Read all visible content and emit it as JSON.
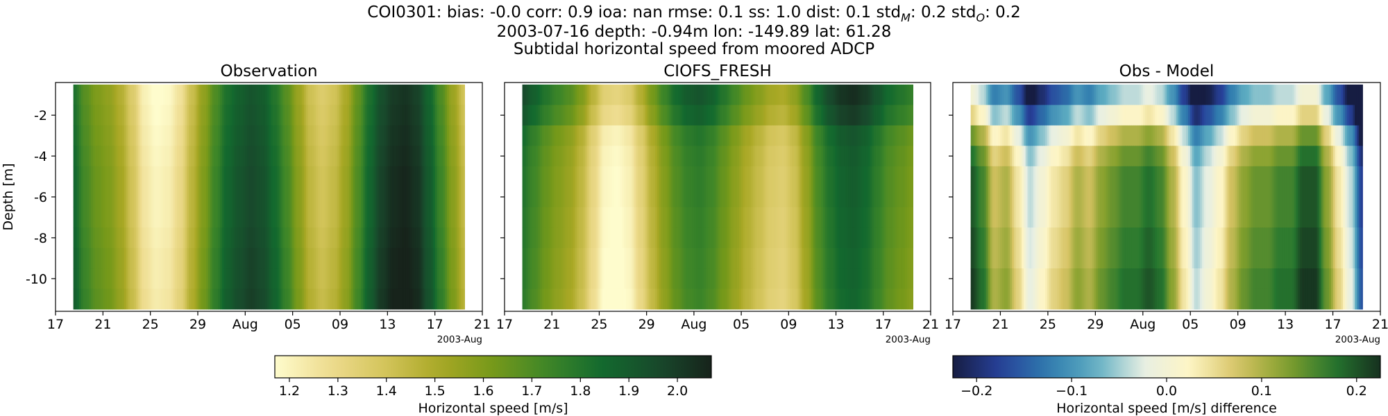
{
  "title": {
    "line1": {
      "prefix": "COI0301: bias: -0.0  corr: 0.9  ioa: nan  rmse: 0.1  ss: 1.0  dist: 0.1  std",
      "sub_m": "M",
      "mid": ": 0.2  std",
      "sub_o": "O",
      "suffix": ": 0.2"
    },
    "line2": "2003-07-16 depth: -0.94m lon: -149.89 lat: 61.28",
    "line3": "Subtidal horizontal speed from moored ADCP"
  },
  "chart_data": [
    {
      "type": "heatmap",
      "title": "Observation",
      "ylabel": "Depth [m]",
      "x_tick_labels": [
        "17",
        "21",
        "25",
        "29",
        "Aug",
        "05",
        "09",
        "13",
        "17",
        "21"
      ],
      "x_offset_label": "2003-Aug",
      "x_range": [
        "2003-07-16",
        "2003-08-21"
      ],
      "x_data_range": [
        "2003-07-17T12:00",
        "2003-08-19T12:00"
      ],
      "y_tick_labels": [
        "-2",
        "-4",
        "-6",
        "-8",
        "-10"
      ],
      "ylim": [
        -11.6,
        -0.4
      ],
      "colormap": "speed",
      "clim": [
        1.17,
        2.07
      ],
      "time_profile": [
        [
          "2003-07-17T12:00",
          1.86
        ],
        [
          "2003-07-18T12:00",
          1.72
        ],
        [
          "2003-07-19T12:00",
          1.64
        ],
        [
          "2003-07-20T12:00",
          1.6
        ],
        [
          "2003-07-21T12:00",
          1.52
        ],
        [
          "2003-07-22T12:00",
          1.4
        ],
        [
          "2003-07-23T12:00",
          1.25
        ],
        [
          "2003-07-24T12:00",
          1.2
        ],
        [
          "2003-07-25T12:00",
          1.22
        ],
        [
          "2003-07-26T12:00",
          1.3
        ],
        [
          "2003-07-27T12:00",
          1.46
        ],
        [
          "2003-07-28T12:00",
          1.6
        ],
        [
          "2003-07-29T12:00",
          1.74
        ],
        [
          "2003-07-30T12:00",
          1.86
        ],
        [
          "2003-07-31T12:00",
          1.92
        ],
        [
          "2003-08-01T12:00",
          1.96
        ],
        [
          "2003-08-02T12:00",
          1.93
        ],
        [
          "2003-08-03T12:00",
          1.84
        ],
        [
          "2003-08-04T12:00",
          1.72
        ],
        [
          "2003-08-05T12:00",
          1.58
        ],
        [
          "2003-08-06T12:00",
          1.45
        ],
        [
          "2003-08-07T12:00",
          1.4
        ],
        [
          "2003-08-08T12:00",
          1.44
        ],
        [
          "2003-08-09T12:00",
          1.54
        ],
        [
          "2003-08-10T12:00",
          1.7
        ],
        [
          "2003-08-11T12:00",
          1.86
        ],
        [
          "2003-08-12T12:00",
          1.98
        ],
        [
          "2003-08-13T12:00",
          2.04
        ],
        [
          "2003-08-14T12:00",
          2.06
        ],
        [
          "2003-08-15T12:00",
          2.02
        ],
        [
          "2003-08-16T12:00",
          1.9
        ],
        [
          "2003-08-17T12:00",
          1.74
        ],
        [
          "2003-08-18T12:00",
          1.58
        ],
        [
          "2003-08-19T12:00",
          1.44
        ]
      ],
      "depth_levels": [
        -1.0,
        -2.0,
        -3.0,
        -4.0,
        -5.0,
        -6.0,
        -7.0,
        -8.0,
        -9.0,
        -10.0,
        -11.0
      ],
      "depth_adjust": [
        -0.04,
        -0.03,
        -0.02,
        -0.01,
        0.0,
        0.0,
        0.0,
        0.01,
        0.02,
        0.02,
        0.03
      ]
    },
    {
      "type": "heatmap",
      "title": "CIOFS_FRESH",
      "x_tick_labels": [
        "17",
        "21",
        "25",
        "29",
        "Aug",
        "05",
        "09",
        "13",
        "17",
        "21"
      ],
      "x_offset_label": "2003-Aug",
      "x_range": [
        "2003-07-16",
        "2003-08-21"
      ],
      "x_data_range": [
        "2003-07-17T12:00",
        "2003-08-19T12:00"
      ],
      "ylim": [
        -11.6,
        -0.4
      ],
      "colormap": "speed",
      "clim": [
        1.17,
        2.07
      ],
      "time_profile": [
        [
          "2003-07-17T12:00",
          1.82
        ],
        [
          "2003-07-18T12:00",
          1.74
        ],
        [
          "2003-07-19T12:00",
          1.66
        ],
        [
          "2003-07-20T12:00",
          1.6
        ],
        [
          "2003-07-21T12:00",
          1.55
        ],
        [
          "2003-07-22T12:00",
          1.46
        ],
        [
          "2003-07-23T12:00",
          1.32
        ],
        [
          "2003-07-24T12:00",
          1.2
        ],
        [
          "2003-07-25T12:00",
          1.18
        ],
        [
          "2003-07-26T12:00",
          1.22
        ],
        [
          "2003-07-27T12:00",
          1.34
        ],
        [
          "2003-07-28T12:00",
          1.48
        ],
        [
          "2003-07-29T12:00",
          1.6
        ],
        [
          "2003-07-30T12:00",
          1.7
        ],
        [
          "2003-07-31T12:00",
          1.76
        ],
        [
          "2003-08-01T12:00",
          1.78
        ],
        [
          "2003-08-02T12:00",
          1.74
        ],
        [
          "2003-08-03T12:00",
          1.66
        ],
        [
          "2003-08-04T12:00",
          1.58
        ],
        [
          "2003-08-05T12:00",
          1.5
        ],
        [
          "2003-08-06T12:00",
          1.44
        ],
        [
          "2003-08-07T12:00",
          1.38
        ],
        [
          "2003-08-08T12:00",
          1.36
        ],
        [
          "2003-08-09T12:00",
          1.42
        ],
        [
          "2003-08-10T12:00",
          1.56
        ],
        [
          "2003-08-11T12:00",
          1.72
        ],
        [
          "2003-08-12T12:00",
          1.82
        ],
        [
          "2003-08-13T12:00",
          1.88
        ],
        [
          "2003-08-14T12:00",
          1.9
        ],
        [
          "2003-08-15T12:00",
          1.86
        ],
        [
          "2003-08-16T12:00",
          1.78
        ],
        [
          "2003-08-17T12:00",
          1.7
        ],
        [
          "2003-08-18T12:00",
          1.66
        ],
        [
          "2003-08-19T12:00",
          1.62
        ]
      ],
      "depth_levels": [
        -1.0,
        -2.0,
        -3.0,
        -4.0,
        -5.0,
        -6.0,
        -7.0,
        -8.0,
        -9.0,
        -10.0,
        -11.0
      ],
      "depth_adjust": [
        0.14,
        0.1,
        0.02,
        0.0,
        -0.01,
        -0.01,
        -0.02,
        -0.02,
        -0.03,
        -0.03,
        -0.04
      ]
    },
    {
      "type": "heatmap",
      "title": "Obs - Model",
      "x_tick_labels": [
        "17",
        "21",
        "25",
        "29",
        "Aug",
        "05",
        "09",
        "13",
        "17",
        "21"
      ],
      "x_offset_label": "2003-Aug",
      "x_range": [
        "2003-07-16",
        "2003-08-21"
      ],
      "x_data_range": [
        "2003-07-17T12:00",
        "2003-08-19T12:00"
      ],
      "ylim": [
        -11.6,
        -0.4
      ],
      "colormap": "delta",
      "clim": [
        -0.225,
        0.225
      ],
      "time_profile": [
        [
          "2003-07-17T12:00",
          0.2
        ],
        [
          "2003-07-18T12:00",
          0.16
        ],
        [
          "2003-07-19T12:00",
          0.08
        ],
        [
          "2003-07-20T12:00",
          0.1
        ],
        [
          "2003-07-21T12:00",
          0.04
        ],
        [
          "2003-07-22T12:00",
          -0.04
        ],
        [
          "2003-07-23T12:00",
          0.0
        ],
        [
          "2003-07-24T12:00",
          0.04
        ],
        [
          "2003-07-25T12:00",
          0.06
        ],
        [
          "2003-07-26T12:00",
          0.1
        ],
        [
          "2003-07-27T12:00",
          0.08
        ],
        [
          "2003-07-28T12:00",
          0.12
        ],
        [
          "2003-07-29T12:00",
          0.14
        ],
        [
          "2003-07-30T12:00",
          0.16
        ],
        [
          "2003-07-31T12:00",
          0.16
        ],
        [
          "2003-08-01T12:00",
          0.18
        ],
        [
          "2003-08-02T12:00",
          0.16
        ],
        [
          "2003-08-03T12:00",
          0.1
        ],
        [
          "2003-08-04T12:00",
          0.02
        ],
        [
          "2003-08-05T12:00",
          -0.06
        ],
        [
          "2003-08-06T12:00",
          -0.02
        ],
        [
          "2003-08-07T12:00",
          0.02
        ],
        [
          "2003-08-08T12:00",
          0.08
        ],
        [
          "2003-08-09T12:00",
          0.12
        ],
        [
          "2003-08-10T12:00",
          0.14
        ],
        [
          "2003-08-11T12:00",
          0.14
        ],
        [
          "2003-08-12T12:00",
          0.16
        ],
        [
          "2003-08-13T12:00",
          0.16
        ],
        [
          "2003-08-14T12:00",
          0.2
        ],
        [
          "2003-08-15T12:00",
          0.2
        ],
        [
          "2003-08-16T12:00",
          0.12
        ],
        [
          "2003-08-17T12:00",
          0.04
        ],
        [
          "2003-08-18T12:00",
          -0.04
        ],
        [
          "2003-08-19T12:00",
          -0.18
        ]
      ],
      "depth_levels": [
        -1.0,
        -2.0,
        -3.0,
        -4.0,
        -5.0,
        -6.0,
        -7.0,
        -8.0,
        -9.0,
        -10.0,
        -11.0
      ],
      "depth_adjust": [
        -0.2,
        -0.14,
        -0.06,
        -0.02,
        0.0,
        0.0,
        0.0,
        0.01,
        0.01,
        0.02,
        0.02
      ]
    }
  ],
  "colorbars": [
    {
      "label": "Horizontal speed [m/s]",
      "colormap": "speed",
      "range": [
        1.17,
        2.07
      ],
      "ticks": [
        1.2,
        1.3,
        1.4,
        1.5,
        1.6,
        1.7,
        1.8,
        1.9,
        2.0
      ],
      "tick_labels": [
        "1.2",
        "1.3",
        "1.4",
        "1.5",
        "1.6",
        "1.7",
        "1.8",
        "1.9",
        "2.0"
      ]
    },
    {
      "label": "Horizontal speed [m/s] difference",
      "colormap": "delta",
      "range": [
        -0.225,
        0.225
      ],
      "ticks": [
        -0.2,
        -0.1,
        0.0,
        0.1,
        0.2
      ],
      "tick_labels": [
        "−0.2",
        "−0.1",
        "0.0",
        "0.1",
        "0.2"
      ]
    }
  ],
  "colors": {
    "speed": [
      "#fefccd",
      "#eedc8f",
      "#d4c55c",
      "#a9a825",
      "#76991a",
      "#3e8628",
      "#13692e",
      "#184a2c",
      "#17231b"
    ],
    "delta": [
      "#161d42",
      "#27419a",
      "#2f7bae",
      "#5eadc2",
      "#e7efe4",
      "#fef5c4",
      "#d6c363",
      "#85a02d",
      "#25772f",
      "#16301f"
    ]
  }
}
